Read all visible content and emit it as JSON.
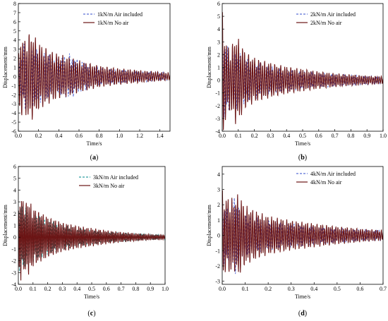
{
  "chart_data": [
    {
      "id": "a",
      "type": "line",
      "panel_label": "a",
      "xlabel": "Time/s",
      "ylabel": "Displacement/mm",
      "xlim": [
        0,
        1.5
      ],
      "ylim": [
        -6,
        8
      ],
      "xticks": [
        "0.0",
        "0.2",
        "0.4",
        "0.6",
        "0.8",
        "1.0",
        "1.2",
        "1.4"
      ],
      "xtick_values": [
        0,
        0.2,
        0.4,
        0.6,
        0.8,
        1.0,
        1.2,
        1.4
      ],
      "yticks": [
        "-6",
        "-5",
        "-4",
        "-3",
        "-2",
        "-1",
        "0",
        "1",
        "2",
        "3",
        "4",
        "5",
        "6",
        "7",
        "8"
      ],
      "ytick_values": [
        -6,
        -5,
        -4,
        -3,
        -2,
        -1,
        0,
        1,
        2,
        3,
        4,
        5,
        6,
        7,
        8
      ],
      "legend": "top-right",
      "series": [
        {
          "name": "1kN/m Air included",
          "style": "dashed",
          "color": "#5b6fd6",
          "t": [
            0,
            0.03,
            0.06,
            0.1,
            0.15,
            0.2,
            0.3,
            0.4,
            0.5,
            0.6,
            0.7,
            0.8,
            1.0,
            1.2,
            1.4,
            1.5
          ],
          "env": [
            2.3,
            2.0,
            4.0,
            3.8,
            3.2,
            3.0,
            2.5,
            2.0,
            2.6,
            1.8,
            1.4,
            1.0,
            0.8,
            0.6,
            0.5,
            0.4
          ],
          "cycles": 60,
          "offset": 0
        },
        {
          "name": "1kN/m No air",
          "style": "solid",
          "color": "#6b1414",
          "t": [
            0,
            0.02,
            0.05,
            0.08,
            0.12,
            0.16,
            0.2,
            0.3,
            0.4,
            0.5,
            0.6,
            0.7,
            0.8,
            1.0,
            1.2,
            1.4,
            1.5
          ],
          "env": [
            2.3,
            4.8,
            4.0,
            4.5,
            5.0,
            4.5,
            3.8,
            3.0,
            2.5,
            2.2,
            1.8,
            1.5,
            1.2,
            0.9,
            0.7,
            0.5,
            0.4
          ],
          "cycles": 72,
          "offset": 0
        }
      ]
    },
    {
      "id": "b",
      "type": "line",
      "panel_label": "b",
      "xlabel": "Time/s",
      "ylabel": "Displacement/mm",
      "xlim": [
        0,
        1.0
      ],
      "ylim": [
        -4,
        6
      ],
      "xticks": [
        "0.0",
        "0.1",
        "0.2",
        "0.3",
        "0.4",
        "0.5",
        "0.6",
        "0.7",
        "0.8",
        "0.9",
        "1.0"
      ],
      "xtick_values": [
        0,
        0.1,
        0.2,
        0.3,
        0.4,
        0.5,
        0.6,
        0.7,
        0.8,
        0.9,
        1.0
      ],
      "yticks": [
        "-4",
        "-3",
        "-2",
        "-1",
        "0",
        "1",
        "2",
        "3",
        "4",
        "5",
        "6"
      ],
      "ytick_values": [
        -4,
        -3,
        -2,
        -1,
        0,
        1,
        2,
        3,
        4,
        5,
        6
      ],
      "legend": "top-right",
      "series": [
        {
          "name": "2kN/m Air included",
          "style": "dashed",
          "color": "#5b6fd6",
          "t": [
            0,
            0.03,
            0.06,
            0.1,
            0.15,
            0.2,
            0.3,
            0.4,
            0.5,
            0.6,
            0.7,
            0.8,
            0.9,
            1.0
          ],
          "env": [
            3.0,
            2.8,
            2.5,
            2.2,
            1.8,
            1.5,
            1.1,
            0.9,
            0.7,
            0.6,
            0.5,
            0.4,
            0.35,
            0.3
          ],
          "cycles": 65,
          "offset": 0
        },
        {
          "name": "2kN/m No air",
          "style": "solid",
          "color": "#6b1414",
          "t": [
            0,
            0.02,
            0.05,
            0.08,
            0.1,
            0.15,
            0.2,
            0.3,
            0.4,
            0.5,
            0.6,
            0.7,
            0.8,
            0.9,
            1.0
          ],
          "env": [
            5.5,
            3.2,
            2.5,
            3.5,
            3.3,
            2.2,
            1.8,
            1.4,
            1.1,
            0.9,
            0.7,
            0.55,
            0.45,
            0.35,
            0.3
          ],
          "cycles": 80,
          "offset": 0
        }
      ]
    },
    {
      "id": "c",
      "type": "line",
      "panel_label": "c",
      "xlabel": "Time/s",
      "ylabel": "Displacement/mm",
      "xlim": [
        0,
        1.0
      ],
      "ylim": [
        -4,
        6
      ],
      "xticks": [
        "0.0",
        "0.1",
        "0.2",
        "0.3",
        "0.4",
        "0.5",
        "0.6",
        "0.7",
        "0.8",
        "0.9",
        "1.0"
      ],
      "xtick_values": [
        0,
        0.1,
        0.2,
        0.3,
        0.4,
        0.5,
        0.6,
        0.7,
        0.8,
        0.9,
        1.0
      ],
      "yticks": [
        "-4",
        "-3",
        "-2",
        "-1",
        "0",
        "1",
        "2",
        "3",
        "4",
        "5",
        "6"
      ],
      "ytick_values": [
        -4,
        -3,
        -2,
        -1,
        0,
        1,
        2,
        3,
        4,
        5,
        6
      ],
      "legend": "top-right",
      "series": [
        {
          "name": "3kN/m Air included",
          "style": "dashed",
          "color": "#2f9fa0",
          "t": [
            0,
            0.03,
            0.06,
            0.1,
            0.15,
            0.2,
            0.3,
            0.4,
            0.5,
            0.6,
            0.7,
            0.8,
            0.9,
            1.0
          ],
          "env": [
            3.0,
            2.8,
            2.5,
            2.2,
            1.8,
            1.5,
            1.1,
            0.8,
            0.6,
            0.5,
            0.4,
            0.3,
            0.25,
            0.2
          ],
          "cycles": 85,
          "offset": 0
        },
        {
          "name": "3kN/m No air",
          "style": "solid",
          "color": "#6b1414",
          "t": [
            0,
            0.01,
            0.04,
            0.07,
            0.1,
            0.15,
            0.2,
            0.3,
            0.4,
            0.5,
            0.6,
            0.7,
            0.8,
            0.9,
            1.0
          ],
          "env": [
            2.0,
            4.0,
            3.0,
            3.3,
            2.6,
            2.2,
            1.8,
            1.3,
            1.0,
            0.8,
            0.6,
            0.45,
            0.35,
            0.25,
            0.2
          ],
          "cycles": 95,
          "offset": 0
        }
      ]
    },
    {
      "id": "d",
      "type": "line",
      "panel_label": "d",
      "xlabel": "Time/s",
      "ylabel": "Displacement/mm",
      "xlim": [
        0,
        0.7
      ],
      "ylim": [
        -3.2,
        4.5
      ],
      "xticks": [
        "0.0",
        "0.1",
        "0.2",
        "0.3",
        "0.4",
        "0.5",
        "0.6",
        "0.7"
      ],
      "xtick_values": [
        0,
        0.1,
        0.2,
        0.3,
        0.4,
        0.5,
        0.6,
        0.7
      ],
      "yticks": [
        "-3",
        "-2",
        "-1",
        "0",
        "1",
        "2",
        "3",
        "4"
      ],
      "ytick_values": [
        -3,
        -2,
        -1,
        0,
        1,
        2,
        3,
        4
      ],
      "legend": "top-right",
      "series": [
        {
          "name": "4kN/m Air included",
          "style": "dashed",
          "color": "#5b6fd6",
          "t": [
            0,
            0.03,
            0.05,
            0.08,
            0.1,
            0.15,
            0.2,
            0.3,
            0.4,
            0.5,
            0.6,
            0.7
          ],
          "env": [
            2.0,
            1.8,
            3.0,
            1.5,
            1.4,
            1.2,
            1.0,
            0.8,
            0.6,
            0.5,
            0.4,
            0.35
          ],
          "cycles": 70,
          "offset": 0
        },
        {
          "name": "4kN/m No air",
          "style": "solid",
          "color": "#6b1414",
          "t": [
            0,
            0.01,
            0.03,
            0.05,
            0.07,
            0.1,
            0.15,
            0.2,
            0.3,
            0.4,
            0.5,
            0.6,
            0.7
          ],
          "env": [
            3.0,
            2.5,
            2.6,
            2.4,
            2.8,
            2.0,
            1.6,
            1.3,
            1.0,
            0.8,
            0.6,
            0.45,
            0.35
          ],
          "cycles": 85,
          "offset": 0
        }
      ]
    }
  ]
}
